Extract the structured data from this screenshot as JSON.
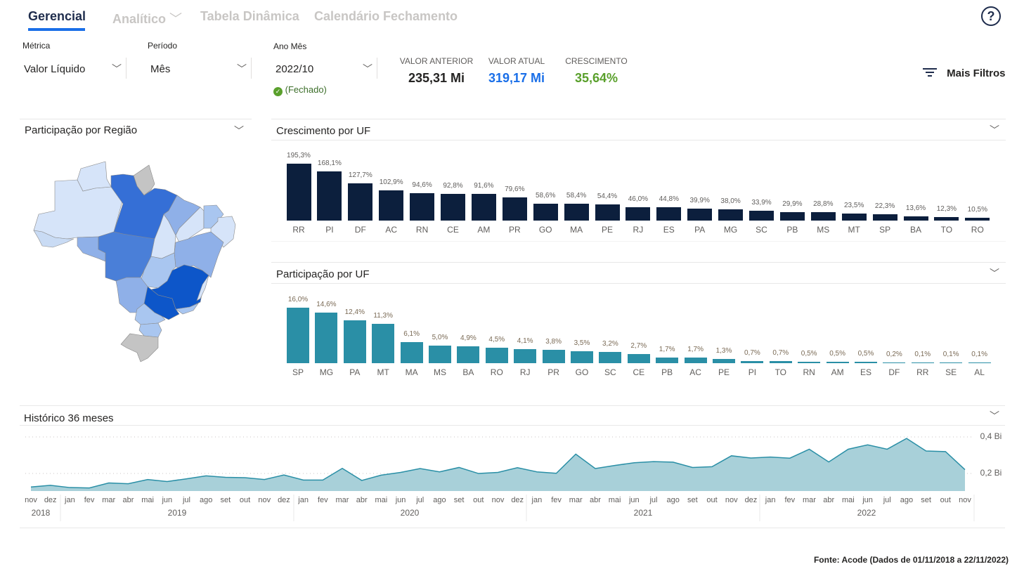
{
  "tabs": [
    {
      "label": "Gerencial"
    },
    {
      "label": "Analítico"
    },
    {
      "label": "Tabela Dinâmica"
    },
    {
      "label": "Calendário Fechamento"
    }
  ],
  "help_icon": "?",
  "filters": {
    "metrica": {
      "label": "Métrica",
      "value": "Valor Líquido"
    },
    "periodo": {
      "label": "Período",
      "value": "Mês"
    },
    "ano_mes": {
      "label": "Ano Mês",
      "value": "2022/10",
      "status": "(Fechado)"
    }
  },
  "kpis": [
    {
      "label": "VALOR ANTERIOR",
      "value": "235,31 Mi",
      "color": "#252423"
    },
    {
      "label": "VALOR ATUAL",
      "value": "319,17 Mi",
      "color": "#1a6fe8"
    },
    {
      "label": "CRESCIMENTO",
      "value": "35,64%",
      "color": "#5aa02c"
    }
  ],
  "more_filters": "Mais Filtros",
  "map": {
    "title": "Participação por Região"
  },
  "chart_data": [
    {
      "type": "bar",
      "title": "Crescimento por UF",
      "categories": [
        "RR",
        "PI",
        "DF",
        "AC",
        "RN",
        "CE",
        "AM",
        "PR",
        "GO",
        "MA",
        "PE",
        "RJ",
        "ES",
        "PA",
        "MG",
        "SC",
        "PB",
        "MS",
        "MT",
        "SP",
        "BA",
        "TO",
        "RO"
      ],
      "values": [
        195.3,
        168.1,
        127.7,
        102.9,
        94.6,
        92.8,
        91.6,
        79.6,
        58.6,
        58.4,
        54.4,
        46.0,
        44.8,
        39.9,
        38.0,
        33.9,
        29.9,
        28.8,
        23.5,
        22.3,
        13.6,
        12.3,
        10.5
      ],
      "labels": [
        "195,3%",
        "168,1%",
        "127,7%",
        "102,9%",
        "94,6%",
        "92,8%",
        "91,6%",
        "79,6%",
        "58,6%",
        "58,4%",
        "54,4%",
        "46,0%",
        "44,8%",
        "39,9%",
        "38,0%",
        "33,9%",
        "29,9%",
        "28,8%",
        "23,5%",
        "22,3%",
        "13,6%",
        "12,3%",
        "10,5%"
      ],
      "color": "#0c1f3d"
    },
    {
      "type": "bar",
      "title": "Participação por UF",
      "categories": [
        "SP",
        "MG",
        "PA",
        "MT",
        "MA",
        "MS",
        "BA",
        "RO",
        "RJ",
        "PR",
        "GO",
        "SC",
        "CE",
        "PB",
        "AC",
        "PE",
        "PI",
        "TO",
        "RN",
        "AM",
        "ES",
        "DF",
        "RR",
        "SE",
        "AL"
      ],
      "values": [
        16.0,
        14.6,
        12.4,
        11.3,
        6.1,
        5.0,
        4.9,
        4.5,
        4.1,
        3.8,
        3.5,
        3.2,
        2.7,
        1.7,
        1.7,
        1.3,
        0.7,
        0.7,
        0.5,
        0.5,
        0.5,
        0.2,
        0.1,
        0.1,
        0.1
      ],
      "labels": [
        "16,0%",
        "14,6%",
        "12,4%",
        "11,3%",
        "6,1%",
        "5,0%",
        "4,9%",
        "4,5%",
        "4,1%",
        "3,8%",
        "3,5%",
        "3,2%",
        "2,7%",
        "1,7%",
        "1,7%",
        "1,3%",
        "0,7%",
        "0,7%",
        "0,5%",
        "0,5%",
        "0,5%",
        "0,2%",
        "0,1%",
        "0,1%",
        "0,1%"
      ],
      "color": "#2a8fa6"
    },
    {
      "type": "area",
      "title": "Histórico 36 meses",
      "ylabel_ticks": [
        "0,2 Bi",
        "0,4 Bi"
      ],
      "ytick_values": [
        0.2,
        0.4
      ],
      "ylim": [
        0.104,
        0.42
      ],
      "months": [
        "nov",
        "dez",
        "jan",
        "fev",
        "mar",
        "abr",
        "mai",
        "jun",
        "jul",
        "ago",
        "set",
        "out",
        "nov",
        "dez",
        "jan",
        "fev",
        "mar",
        "abr",
        "mai",
        "jun",
        "jul",
        "ago",
        "set",
        "out",
        "nov",
        "dez",
        "jan",
        "fev",
        "mar",
        "abr",
        "mai",
        "jun",
        "jul",
        "ago",
        "set",
        "out",
        "nov",
        "dez",
        "jan",
        "fev",
        "mar",
        "abr",
        "mai",
        "jun",
        "jul",
        "ago",
        "set",
        "out",
        "nov"
      ],
      "years": [
        "2018",
        "2019",
        "2020",
        "2021",
        "2022"
      ],
      "values": [
        0.126,
        0.135,
        0.123,
        0.121,
        0.148,
        0.144,
        0.167,
        0.156,
        0.171,
        0.187,
        0.179,
        0.177,
        0.167,
        0.192,
        0.164,
        0.164,
        0.228,
        0.162,
        0.191,
        0.206,
        0.227,
        0.209,
        0.233,
        0.2,
        0.206,
        0.232,
        0.209,
        0.201,
        0.306,
        0.227,
        0.244,
        0.259,
        0.265,
        0.262,
        0.233,
        0.237,
        0.297,
        0.285,
        0.29,
        0.284,
        0.333,
        0.263,
        0.333,
        0.357,
        0.333,
        0.392,
        0.323,
        0.32,
        0.221
      ],
      "color": "#2a8fa6",
      "fill": "#a8d0d9"
    }
  ],
  "footer": "Fonte: Acode (Dados de 01/11/2018 a 22/11/2022)"
}
